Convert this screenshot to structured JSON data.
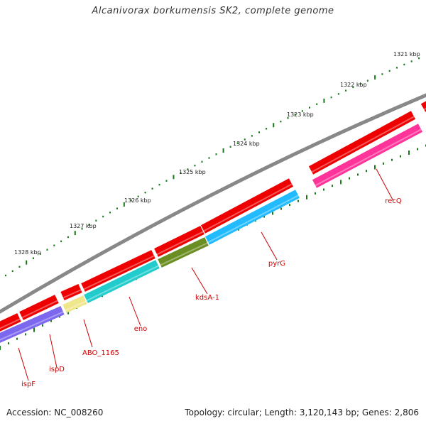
{
  "title": "Alcanivorax borkumensis SK2, complete genome",
  "accession": "Accession: NC_008260",
  "genome_stats": "Topology: circular; Length: 3,120,143 bp; Genes: 2,806",
  "scale_labels": [
    "1321 kbp",
    "1322 kbp",
    "1323 kbp",
    "1324 kbp",
    "1325 kbp",
    "1326 kbp",
    "1327 kbp",
    "1328 kbp"
  ],
  "gene_labels": [
    "recQ",
    "pyrG",
    "kdsA-1",
    "eno",
    "ABO_1165",
    "ispD",
    "ispF"
  ],
  "colors": {
    "backbone": "#888888",
    "cds_forward": "#ee0000",
    "tick": "#1a7a1a",
    "label": "#cc0000",
    "recQ": "#ff3399",
    "pyrG": "#22bbff",
    "kdsA": "#6b8e23",
    "eno": "#22cccc",
    "ABO_1165": "#f0e68c",
    "ispD": "#7b68ee"
  }
}
